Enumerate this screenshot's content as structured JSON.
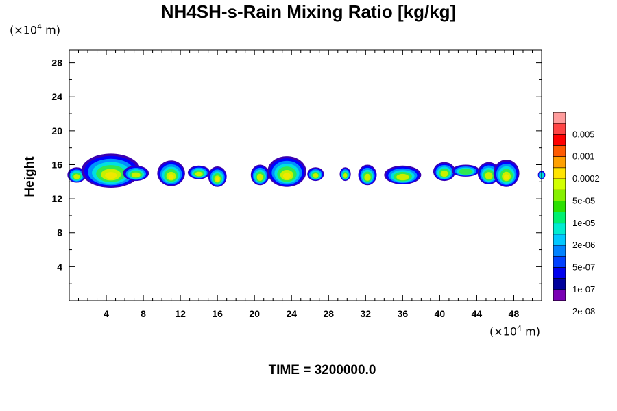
{
  "chart_data": {
    "type": "heatmap",
    "title": "NH4SH-s-Rain Mixing Ratio [kg/kg]",
    "ylabel": "Height",
    "y_unit_prefix": "(×10",
    "y_unit_exp": "4",
    "y_unit_suffix": " m)",
    "x_unit_prefix": "(×10",
    "x_unit_exp": "4",
    "x_unit_suffix": " m)",
    "xlim": [
      0,
      51
    ],
    "ylim": [
      0,
      29.5
    ],
    "xticks": [
      4,
      8,
      12,
      16,
      20,
      24,
      28,
      32,
      36,
      40,
      44,
      48
    ],
    "yticks": [
      4,
      8,
      12,
      16,
      20,
      24,
      28
    ],
    "colorbar_labels": [
      "0.005",
      "0.001",
      "0.0002",
      "5e-05",
      "1e-05",
      "2e-06",
      "5e-07",
      "1e-07",
      "2e-08"
    ],
    "colorbar_colors": [
      "#ff9c9c",
      "#ff4444",
      "#ff0000",
      "#ff5a00",
      "#ffa000",
      "#ffe400",
      "#d2ff00",
      "#86f000",
      "#2ce000",
      "#00f070",
      "#00ecd0",
      "#00c8ff",
      "#0082ff",
      "#0040ff",
      "#0000ee",
      "#00009c",
      "#7a00b4"
    ],
    "clouds": [
      {
        "cx": 0.8,
        "cy": 14.8,
        "rx": 1.0,
        "ry": 0.9,
        "level": 3
      },
      {
        "cx": 4.5,
        "cy": 15.3,
        "rx": 3.2,
        "ry": 2.0,
        "level": 4
      },
      {
        "cx": 7.2,
        "cy": 15.0,
        "rx": 1.4,
        "ry": 0.9,
        "level": 3
      },
      {
        "cx": 11.0,
        "cy": 15.0,
        "rx": 1.5,
        "ry": 1.5,
        "level": 4
      },
      {
        "cx": 14.0,
        "cy": 15.1,
        "rx": 1.2,
        "ry": 0.8,
        "level": 3
      },
      {
        "cx": 16.0,
        "cy": 14.6,
        "rx": 1.0,
        "ry": 1.2,
        "level": 4
      },
      {
        "cx": 20.6,
        "cy": 14.8,
        "rx": 1.0,
        "ry": 1.2,
        "level": 3
      },
      {
        "cx": 23.5,
        "cy": 15.2,
        "rx": 2.1,
        "ry": 1.8,
        "level": 4
      },
      {
        "cx": 26.6,
        "cy": 14.9,
        "rx": 0.9,
        "ry": 0.8,
        "level": 3
      },
      {
        "cx": 29.8,
        "cy": 14.9,
        "rx": 0.6,
        "ry": 0.8,
        "level": 3
      },
      {
        "cx": 32.2,
        "cy": 14.8,
        "rx": 1.0,
        "ry": 1.2,
        "level": 3
      },
      {
        "cx": 36.0,
        "cy": 14.8,
        "rx": 2.0,
        "ry": 1.1,
        "level": 3
      },
      {
        "cx": 40.5,
        "cy": 15.2,
        "rx": 1.2,
        "ry": 1.1,
        "level": 3
      },
      {
        "cx": 42.8,
        "cy": 15.3,
        "rx": 1.5,
        "ry": 0.7,
        "level": 2
      },
      {
        "cx": 45.3,
        "cy": 15.0,
        "rx": 1.2,
        "ry": 1.3,
        "level": 3
      },
      {
        "cx": 47.2,
        "cy": 15.0,
        "rx": 1.4,
        "ry": 1.6,
        "level": 4
      },
      {
        "cx": 51.0,
        "cy": 14.8,
        "rx": 0.4,
        "ry": 0.5,
        "level": 1
      }
    ],
    "time_label": "TIME = 3200000.0"
  }
}
